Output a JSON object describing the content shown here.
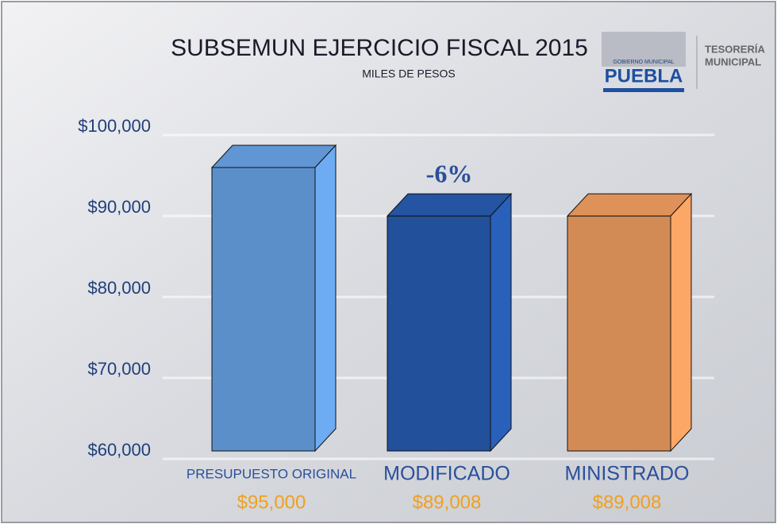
{
  "chart_data": {
    "type": "bar3d",
    "title": "SUBSEMUN EJERCICIO FISCAL 2015",
    "subtitle": "MILES DE PESOS",
    "logo": {
      "caption": "GOBIERNO MUNICIPAL",
      "name": "PUEBLA",
      "org": [
        "TESORERÍA",
        "MUNICIPAL"
      ]
    },
    "annotation": "-6%",
    "categories": [
      "PRESUPUESTO ORIGINAL",
      "MODIFICADO",
      "MINISTRADO"
    ],
    "values": [
      95000,
      89008,
      89008
    ],
    "value_labels": [
      "$95,000",
      "$89,008",
      "$89,008"
    ],
    "colors": [
      "#5b8fca",
      "#22509a",
      "#d38b56"
    ],
    "ylim": [
      60000,
      100000
    ],
    "yticks": [
      {
        "value": 60000,
        "label": "$60,000"
      },
      {
        "value": 70000,
        "label": "$70,000"
      },
      {
        "value": 80000,
        "label": "$80,000"
      },
      {
        "value": 90000,
        "label": "$90,000"
      },
      {
        "value": 100000,
        "label": "$100,000"
      }
    ],
    "grid": true
  }
}
